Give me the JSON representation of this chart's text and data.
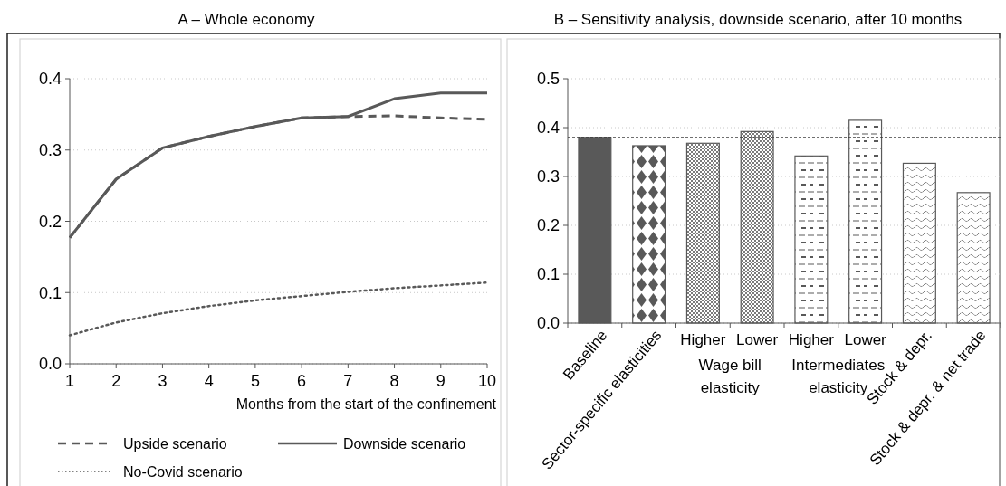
{
  "chart_data": [
    {
      "type": "line",
      "title": "A – Whole economy",
      "xlabel": "Months from the start of the confinement",
      "x": [
        1,
        2,
        3,
        4,
        5,
        6,
        7,
        8,
        9,
        10
      ],
      "xlim": [
        1,
        10
      ],
      "xticks": [
        1,
        2,
        3,
        4,
        5,
        6,
        7,
        8,
        9,
        10
      ],
      "ylim": [
        0,
        0.4
      ],
      "yticks": [
        {
          "value": 0,
          "label": "0.0"
        },
        0.1,
        0.2,
        0.3,
        0.4
      ],
      "grid": "y",
      "legend": "bottom",
      "marker": "none",
      "series": [
        {
          "name": "Upside scenario",
          "color": "#595959",
          "line_style": "dashed",
          "values": [
            0.177,
            0.259,
            0.303,
            0.319,
            0.333,
            0.345,
            0.347,
            0.348,
            0.345,
            0.343
          ]
        },
        {
          "name": "Downside scenario",
          "color": "#595959",
          "line_style": "solid",
          "values": [
            0.177,
            0.259,
            0.303,
            0.319,
            0.333,
            0.345,
            0.347,
            0.372,
            0.38,
            0.38
          ]
        },
        {
          "name": "No-Covid scenario",
          "color": "#595959",
          "line_style": "dotted",
          "values": [
            0.04,
            0.058,
            0.071,
            0.081,
            0.089,
            0.095,
            0.101,
            0.106,
            0.11,
            0.114
          ]
        }
      ]
    },
    {
      "type": "bar",
      "title": "B – Sensitivity analysis, downside scenario, after 10 months",
      "categories": [
        "Baseline",
        "Sector-specific elasticities",
        "Higher",
        "Lower",
        "Higher",
        "Lower",
        "Stock & depr.",
        "Stock & depr. & net trade"
      ],
      "values": [
        0.38,
        0.363,
        0.368,
        0.392,
        0.342,
        0.415,
        0.327,
        0.267
      ],
      "colors": [
        "#595959",
        "#595959",
        "#595959",
        "#595959",
        "#595959",
        "#595959",
        "#595959",
        "#595959"
      ],
      "ylim": [
        0,
        0.5
      ],
      "yticks": [
        {
          "value": 0,
          "label": "0.0"
        },
        0.1,
        0.2,
        0.3,
        0.4,
        0.5
      ],
      "grid": "y",
      "ref_lines": [
        {
          "axis": "y",
          "value": 0.38,
          "line_style": "dashed",
          "color": "#333333"
        }
      ],
      "annotations": [
        "Wage bill\nelasticity",
        "Intermediates\nelasticity"
      ]
    }
  ]
}
